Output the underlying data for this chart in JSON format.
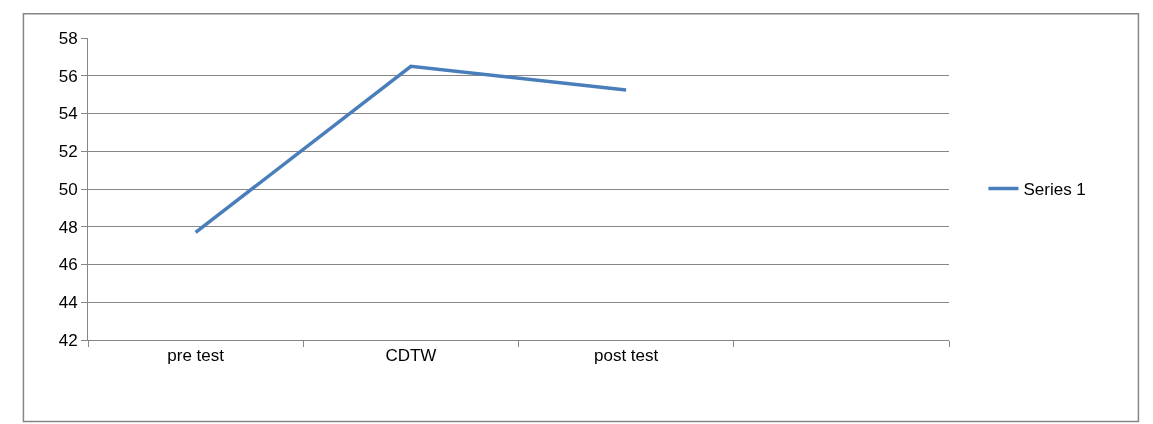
{
  "chart_data": {
    "type": "line",
    "categories": [
      "pre test",
      "CDTW",
      "post test",
      null
    ],
    "series": [
      {
        "name": "Series 1",
        "color": "#4a7ebb",
        "values": [
          47.7,
          56.5,
          55.25,
          null
        ]
      }
    ],
    "ylim": [
      42,
      58
    ],
    "yticks": [
      42,
      44,
      46,
      48,
      50,
      52,
      54,
      56,
      58
    ],
    "grid": "y",
    "legend": "right",
    "marker": "none",
    "line_style": "solid"
  }
}
